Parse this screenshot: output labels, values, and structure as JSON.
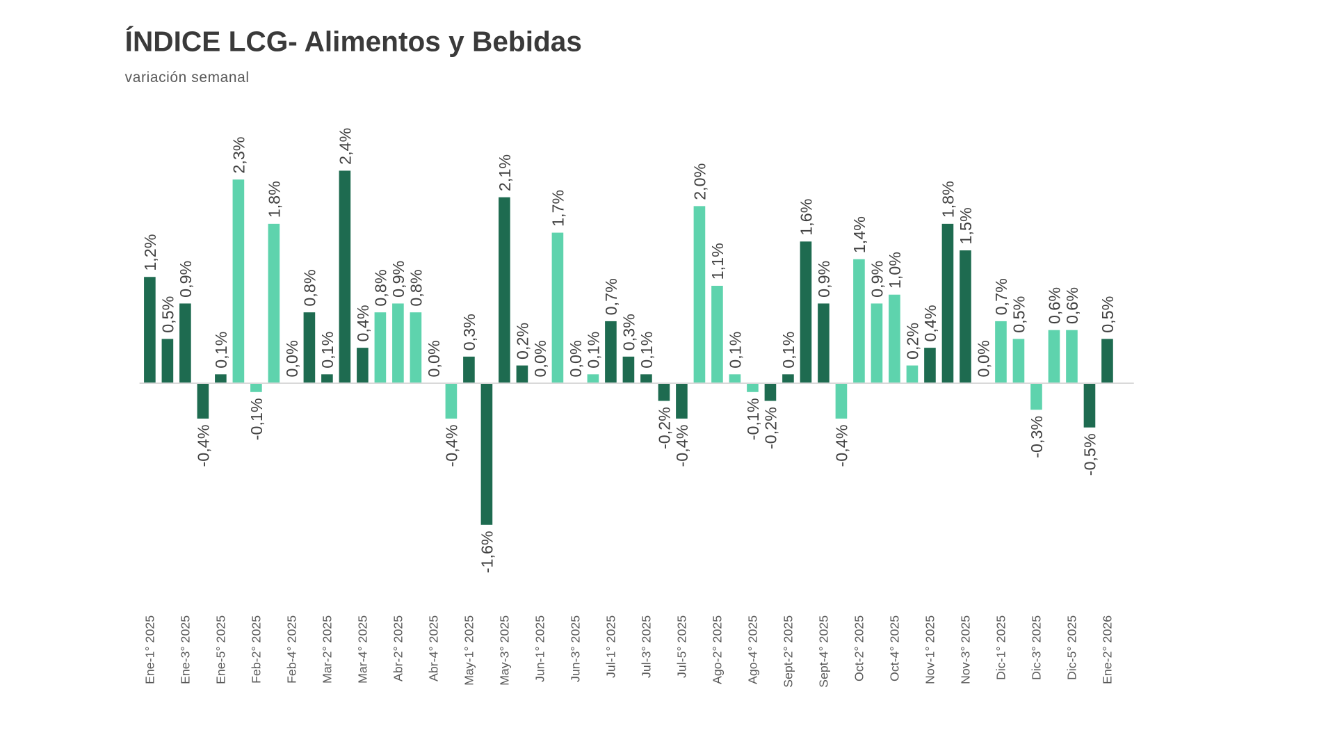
{
  "chart_data": {
    "type": "bar",
    "title": "ÍNDICE LCG- Alimentos y Bebidas",
    "subtitle": "variación semanal",
    "xlabel": "",
    "ylabel": "",
    "ylim": [
      -1.6,
      2.4
    ],
    "grid": false,
    "legend": "none",
    "tick_every": 2,
    "tick_labels": [
      "Ene-1° 2025",
      "Ene-3° 2025",
      "Ene-5° 2025",
      "Feb-2° 2025",
      "Feb-4° 2025",
      "Mar-2° 2025",
      "Mar-4° 2025",
      "Abr-2° 2025",
      "Abr-4° 2025",
      "May-1° 2025",
      "May-3° 2025",
      "Jun-1° 2025",
      "Jun-3° 2025",
      "Jul-1° 2025",
      "Jul-3° 2025",
      "Jul-5° 2025",
      "Ago-2° 2025",
      "Ago-4° 2025",
      "Sept-2° 2025",
      "Sept-4° 2025",
      "Oct-2° 2025",
      "Oct-4° 2025",
      "Nov-1° 2025",
      "Nov-3° 2025",
      "Dic-1° 2025",
      "Dic-3° 2025",
      "Dic-5° 2025",
      "Ene-2° 2026"
    ],
    "values": [
      1.2,
      0.5,
      0.9,
      -0.4,
      0.1,
      2.3,
      -0.1,
      1.8,
      0.0,
      0.8,
      0.1,
      2.4,
      0.4,
      0.8,
      0.9,
      0.8,
      0.0,
      -0.4,
      0.3,
      -1.6,
      2.1,
      0.2,
      0.0,
      1.7,
      0.0,
      0.1,
      0.7,
      0.3,
      0.1,
      -0.2,
      -0.4,
      2.0,
      1.1,
      0.1,
      -0.1,
      -0.2,
      0.1,
      1.6,
      0.9,
      -0.4,
      1.4,
      0.9,
      1.0,
      0.2,
      0.4,
      1.8,
      1.5,
      0.0,
      0.7,
      0.5,
      -0.3,
      0.6,
      0.6,
      -0.5,
      0.5
    ],
    "data_labels": [
      "1,2%",
      "0,5%",
      "0,9%",
      "-0,4%",
      "0,1%",
      "2,3%",
      "-0,1%",
      "1,8%",
      "0,0%",
      "0,8%",
      "0,1%",
      "2,4%",
      "0,4%",
      "0,8%",
      "0,9%",
      "0,8%",
      "0,0%",
      "-0,4%",
      "0,3%",
      "-1,6%",
      "2,1%",
      "0,2%",
      "0,0%",
      "1,7%",
      "0,0%",
      "0,1%",
      "0,7%",
      "0,3%",
      "0,1%",
      "-0,2%",
      "-0,4%",
      "2,0%",
      "1,1%",
      "0,1%",
      "-0,1%",
      "-0,2%",
      "0,1%",
      "1,6%",
      "0,9%",
      "-0,4%",
      "1,4%",
      "0,9%",
      "1,0%",
      "0,2%",
      "0,4%",
      "1,8%",
      "1,5%",
      "0,0%",
      "0,7%",
      "0,5%",
      "-0,3%",
      "0,6%",
      "0,6%",
      "-0,5%",
      "0,5%"
    ],
    "bar_shade": [
      "dark",
      "dark",
      "dark",
      "dark",
      "dark",
      "light",
      "light",
      "light",
      "light",
      "dark",
      "dark",
      "dark",
      "dark",
      "light",
      "light",
      "light",
      "light",
      "light",
      "dark",
      "dark",
      "dark",
      "dark",
      "light",
      "light",
      "light",
      "light",
      "dark",
      "dark",
      "dark",
      "dark",
      "dark",
      "light",
      "light",
      "light",
      "light",
      "dark",
      "dark",
      "dark",
      "dark",
      "light",
      "light",
      "light",
      "light",
      "light",
      "dark",
      "dark",
      "dark",
      "dark",
      "light",
      "light",
      "light",
      "light",
      "light",
      "dark",
      "dark"
    ],
    "colors": {
      "dark": "#1e6b50",
      "light": "#5ed3ad",
      "axis": "#d9d9d9"
    }
  }
}
